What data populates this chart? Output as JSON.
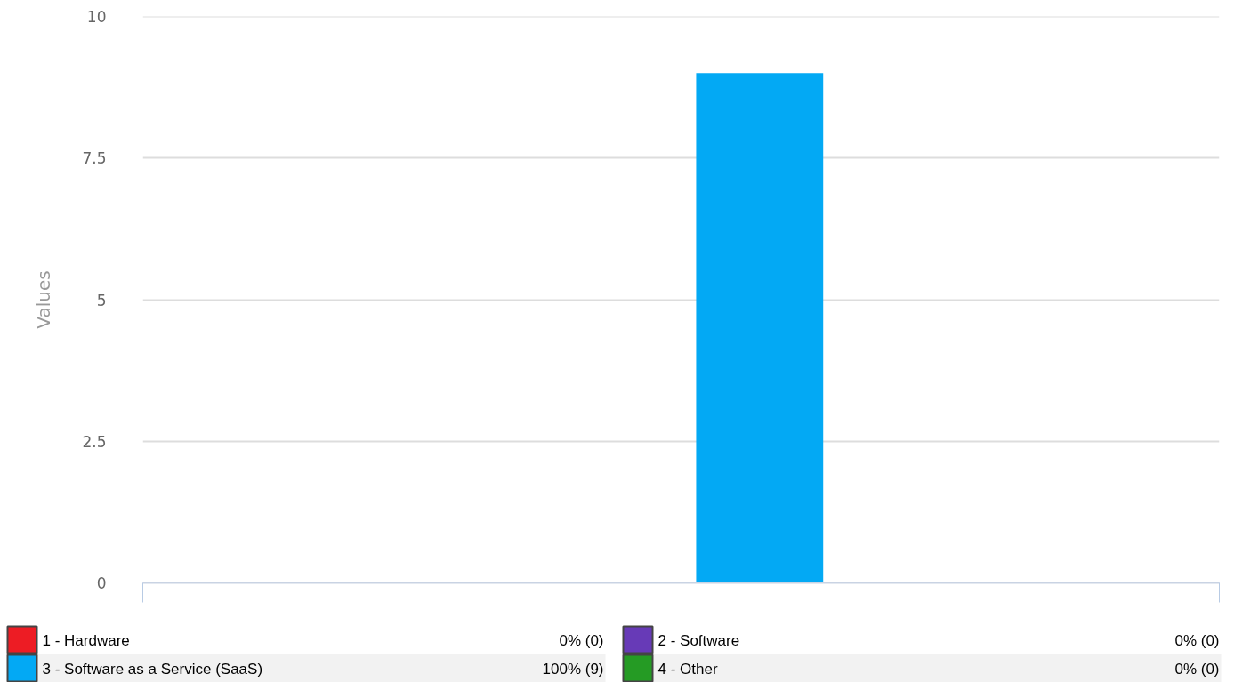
{
  "chart_data": {
    "type": "bar",
    "ylabel": "Values",
    "categories": [
      null
    ],
    "series": [
      {
        "name": "1 - Hardware",
        "color": "#ed1c24",
        "values": [
          0
        ]
      },
      {
        "name": "2 - Software",
        "color": "#673ab7",
        "values": [
          0
        ]
      },
      {
        "name": "3 - Software as a Service (SaaS)",
        "color": "#03a9f4",
        "values": [
          9
        ]
      },
      {
        "name": "4 - Other",
        "color": "#259b24",
        "values": [
          0
        ]
      }
    ],
    "annotations": [
      "0% (0)",
      "0% (0)",
      "100% (9)",
      "0% (0)"
    ],
    "ylim": [
      0,
      10
    ],
    "yticks": [
      0,
      2.5,
      5,
      7.5,
      10
    ],
    "grid": "y",
    "legend": "bottom",
    "tick_labels": "y"
  }
}
